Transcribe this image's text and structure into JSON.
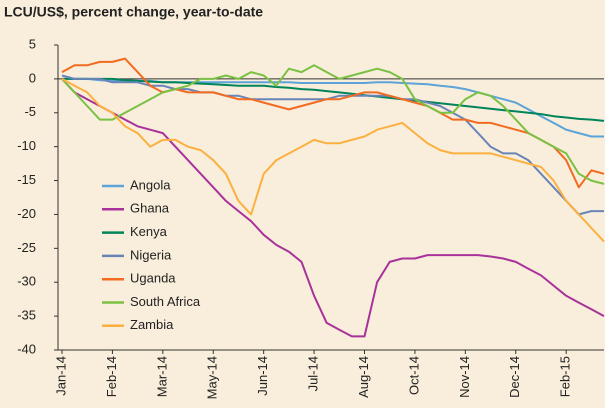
{
  "chart_data": {
    "type": "line",
    "title": "LCU/US$, percent change, year-to-date",
    "categories": [
      "Jan-14",
      null,
      null,
      null,
      "Feb-14",
      null,
      null,
      null,
      "Mar-14",
      null,
      null,
      null,
      "May-14",
      null,
      null,
      null,
      "Jun-14",
      null,
      null,
      null,
      "Jul-14",
      null,
      null,
      null,
      "Aug-14",
      null,
      null,
      null,
      "Oct-14",
      null,
      null,
      null,
      "Nov-14",
      null,
      null,
      null,
      "Dec-14",
      null,
      null,
      null,
      "Feb-15",
      null,
      null,
      null
    ],
    "series": [
      {
        "name": "Angola",
        "color": "#5ba3d9",
        "values": [
          0,
          0,
          0,
          -0.2,
          -0.3,
          -0.3,
          -0.3,
          -0.3,
          -0.5,
          -0.5,
          -0.5,
          -0.5,
          -0.5,
          -0.5,
          -0.5,
          -0.5,
          -0.5,
          -0.5,
          -0.5,
          -0.6,
          -0.6,
          -0.6,
          -0.6,
          -0.6,
          -0.6,
          -0.5,
          -0.5,
          -0.6,
          -0.7,
          -0.8,
          -1,
          -1.2,
          -1.5,
          -2,
          -2.5,
          -3,
          -3.5,
          -4.5,
          -5.5,
          -6.5,
          -7.5,
          -8,
          -8.5,
          -8.5
        ]
      },
      {
        "name": "Ghana",
        "color": "#a8329a",
        "values": [
          0,
          -2,
          -3,
          -4,
          -5,
          -6,
          -7,
          -7.5,
          -8,
          -10,
          -12,
          -14,
          -16,
          -18,
          -19.5,
          -21,
          -23,
          -24.5,
          -25.5,
          -27,
          -32,
          -36,
          -37,
          -38,
          -38,
          -30,
          -27,
          -26.5,
          -26.5,
          -26,
          -26,
          -26,
          -26,
          -26,
          -26.2,
          -26.5,
          -27,
          -28,
          -29,
          -30.5,
          -32,
          -33,
          -34,
          -35
        ]
      },
      {
        "name": "Kenya",
        "color": "#00845a",
        "values": [
          0,
          0,
          0,
          0,
          0,
          -0.2,
          -0.3,
          -0.4,
          -0.5,
          -0.5,
          -0.6,
          -0.7,
          -0.8,
          -0.9,
          -1,
          -1,
          -1,
          -1.2,
          -1.3,
          -1.5,
          -1.6,
          -1.8,
          -2,
          -2.2,
          -2.4,
          -2.6,
          -2.8,
          -3,
          -3.2,
          -3.4,
          -3.6,
          -3.8,
          -4,
          -4.2,
          -4.4,
          -4.6,
          -4.8,
          -5,
          -5.2,
          -5.5,
          -5.7,
          -5.9,
          -6,
          -6.2
        ]
      },
      {
        "name": "Nigeria",
        "color": "#6a84b8",
        "values": [
          0.5,
          0,
          0,
          0,
          -0.5,
          -0.5,
          -0.5,
          -1,
          -1,
          -1.5,
          -1.5,
          -2,
          -2,
          -2.5,
          -2.5,
          -3,
          -3,
          -3,
          -3,
          -3,
          -3,
          -3,
          -2.5,
          -2.5,
          -2.5,
          -2.5,
          -2.5,
          -3,
          -3,
          -3.5,
          -4,
          -5,
          -6,
          -8,
          -10,
          -11,
          -11,
          -12,
          -14,
          -16,
          -18,
          -20,
          -19.5,
          -19.5
        ]
      },
      {
        "name": "Uganda",
        "color": "#f26b21",
        "values": [
          1,
          2,
          2,
          2.5,
          2.5,
          3,
          1,
          -1,
          -2,
          -1.5,
          -2,
          -2,
          -2,
          -2.5,
          -3,
          -3,
          -3.5,
          -4,
          -4.5,
          -4,
          -3.5,
          -3,
          -3,
          -2.5,
          -2,
          -2,
          -2.5,
          -3,
          -3.5,
          -4,
          -5,
          -6,
          -6,
          -6.5,
          -6.5,
          -7,
          -7.5,
          -8,
          -9,
          -10,
          -12,
          -16,
          -13.5,
          -14
        ]
      },
      {
        "name": "South Africa",
        "color": "#7ac143",
        "values": [
          0,
          -2,
          -4,
          -6,
          -6,
          -5,
          -4,
          -3,
          -2,
          -1.5,
          -1,
          0,
          0,
          0.5,
          0,
          1,
          0.5,
          -1,
          1.5,
          1,
          2,
          1,
          0,
          0.5,
          1,
          1.5,
          1,
          0,
          -3,
          -4,
          -5,
          -5,
          -3,
          -2,
          -2.5,
          -4,
          -6,
          -8,
          -9,
          -10,
          -11,
          -14,
          -15,
          -15.5
        ]
      },
      {
        "name": "Zambia",
        "color": "#fbb040",
        "values": [
          0,
          -1,
          -2,
          -4,
          -5,
          -7,
          -8,
          -10,
          -9,
          -9,
          -10,
          -10.5,
          -12,
          -14,
          -18,
          -20,
          -14,
          -12,
          -11,
          -10,
          -9,
          -9.5,
          -9.5,
          -9,
          -8.5,
          -7.5,
          -7,
          -6.5,
          -8,
          -9.5,
          -10.5,
          -11,
          -11,
          -11,
          -11,
          -11.5,
          -12,
          -12.5,
          -13,
          -15,
          -18,
          -20,
          -22,
          -24
        ]
      }
    ],
    "ylim": [
      -40,
      5
    ],
    "yticks": [
      5,
      0,
      -5,
      -10,
      -15,
      -20,
      -25,
      -30,
      -35,
      -40
    ],
    "grid": false
  }
}
